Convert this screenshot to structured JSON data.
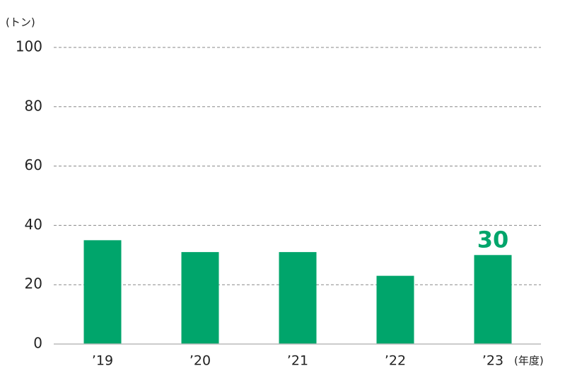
{
  "chart_data": {
    "type": "bar",
    "y_label": "(トン)",
    "x_label": "(年度)",
    "categories": [
      "’19",
      "’20",
      "’21",
      "’22",
      "’23"
    ],
    "values": [
      35,
      31,
      31,
      23,
      30
    ],
    "value_labels": [
      null,
      null,
      null,
      null,
      "30"
    ],
    "color": "#00a56b",
    "ylim": [
      0,
      100
    ],
    "yticks": [
      0,
      20,
      40,
      60,
      80,
      100
    ],
    "grid": true
  }
}
